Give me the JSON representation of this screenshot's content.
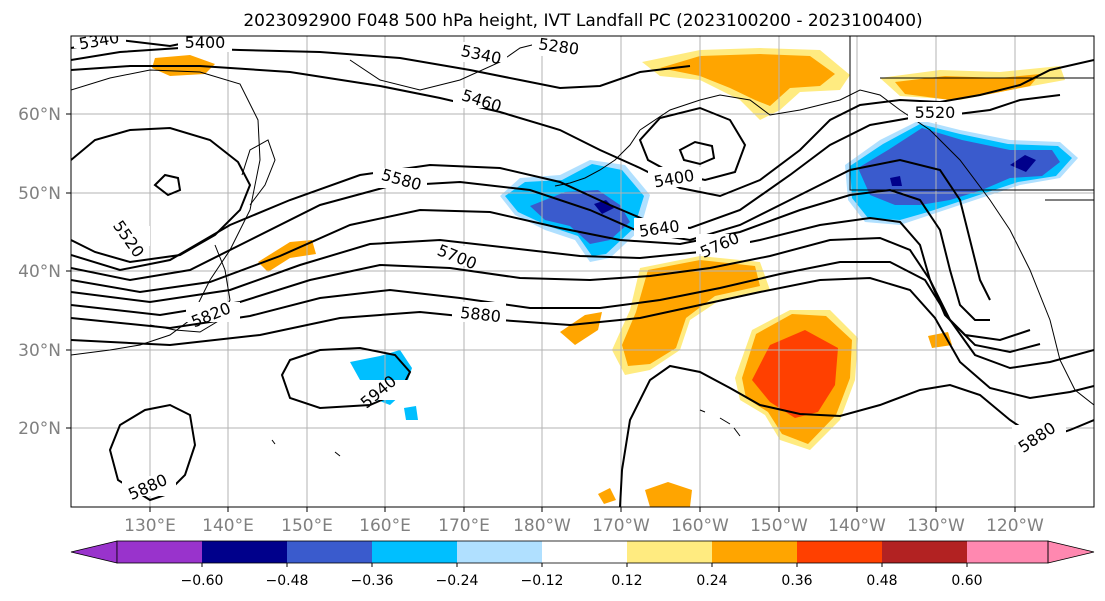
{
  "chart_data": {
    "type": "contour-map",
    "title": "2023092900 F048 500 hPa height, IVT Landfall PC (2023100200 - 2023100400)",
    "lon_ticks": [
      "130°E",
      "140°E",
      "150°E",
      "160°E",
      "170°E",
      "180°W",
      "170°W",
      "160°W",
      "150°W",
      "140°W",
      "130°W",
      "120°W"
    ],
    "lat_ticks": [
      "20°N",
      "30°N",
      "40°N",
      "50°N",
      "60°N"
    ],
    "grid": true,
    "height_contour_labels": [
      "5280",
      "5340",
      "5340",
      "5400",
      "5400",
      "5460",
      "5520",
      "5520",
      "5580",
      "5640",
      "5700",
      "5760",
      "5820",
      "5880",
      "5880",
      "5880",
      "5940"
    ],
    "colorbar": {
      "tick_labels": [
        "−0.60",
        "−0.48",
        "−0.36",
        "−0.24",
        "−0.12",
        "0.12",
        "0.24",
        "0.36",
        "0.48",
        "0.60"
      ],
      "colors": [
        "#9933cc",
        "#00008b",
        "#3a5bcd",
        "#00bfff",
        "#b0e0ff",
        "#ffffff",
        "#ffeb80",
        "#ffa500",
        "#ff4000",
        "#b22222",
        "#ff88b0"
      ],
      "extend": "both"
    }
  }
}
